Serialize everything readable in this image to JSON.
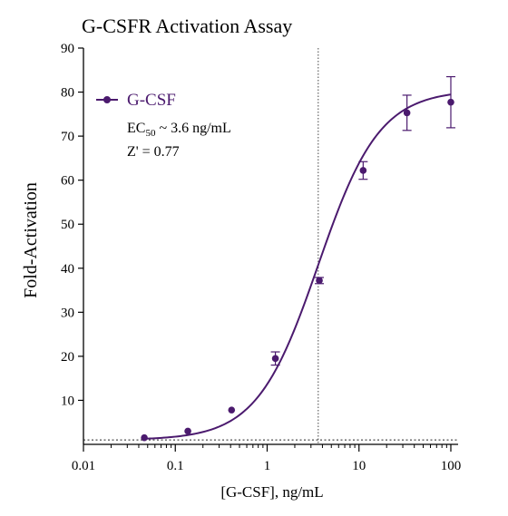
{
  "chart_data": {
    "type": "scatter",
    "title": "G-CSFR Activation Assay",
    "xlabel": "[G-CSF], ng/mL",
    "ylabel": "Fold-Activation",
    "x_scale": "log",
    "xlim": [
      0.01,
      120
    ],
    "ylim": [
      0,
      90
    ],
    "x_ticks": [
      0.01,
      0.1,
      1,
      10,
      100
    ],
    "x_tick_labels": [
      "0.01",
      "0.1",
      "1",
      "10",
      "100"
    ],
    "y_ticks": [
      10,
      20,
      30,
      40,
      50,
      60,
      70,
      80,
      90
    ],
    "y_tick_labels": [
      "10",
      "20",
      "30",
      "40",
      "50",
      "60",
      "70",
      "80",
      "90"
    ],
    "grid": false,
    "legend_position": "top-left",
    "series": [
      {
        "name": "G-CSF",
        "color": "#4b1a6e",
        "x": [
          0.046,
          0.137,
          0.41,
          1.23,
          3.7,
          11.1,
          33.3,
          100
        ],
        "y": [
          1.5,
          3.0,
          7.8,
          19.5,
          37.2,
          62.2,
          75.3,
          77.7
        ],
        "error": [
          0.3,
          0.4,
          0.5,
          1.5,
          0.7,
          2.0,
          4.0,
          5.8
        ],
        "fit": {
          "model": "4PL",
          "bottom": 1.0,
          "top": 80.5,
          "ec50": 3.6,
          "hill": 1.3
        }
      }
    ],
    "reference_lines": [
      {
        "orientation": "vertical",
        "x": 3.6,
        "style": "dotted"
      },
      {
        "orientation": "horizontal",
        "y": 1.0,
        "style": "dotted"
      }
    ],
    "annotations": {
      "ec_prefix": "EC",
      "ec_sub": "50",
      "ec_value": " ~ 3.6 ng/mL",
      "z_prime": "Z' = 0.77"
    }
  }
}
